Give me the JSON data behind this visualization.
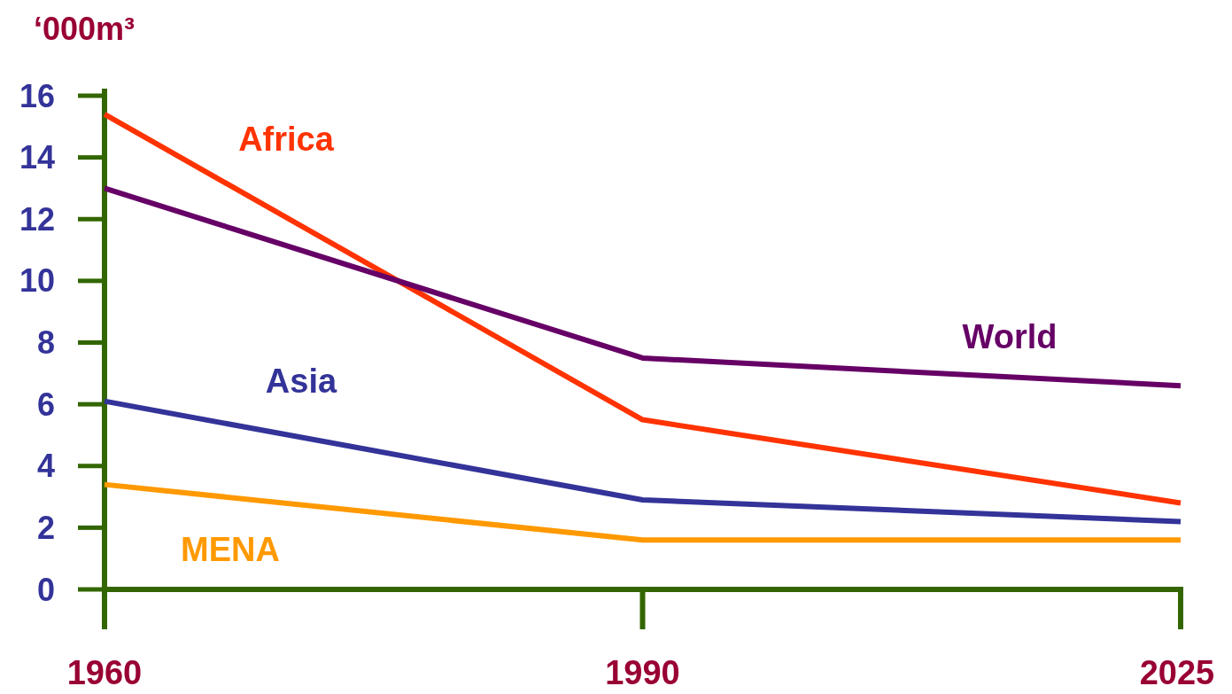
{
  "chart_data": {
    "type": "line",
    "ylabel": "‘000m³",
    "categories": [
      "1960",
      "1990",
      "2025"
    ],
    "ylim": [
      0,
      16
    ],
    "yticks": [
      0,
      2,
      4,
      6,
      8,
      10,
      12,
      14,
      16
    ],
    "grid": false,
    "marker": "none",
    "line_style": "solid",
    "series": [
      {
        "name": "Africa",
        "color": "#ff3300",
        "values": [
          15.4,
          5.5,
          2.8
        ]
      },
      {
        "name": "World",
        "color": "#660066",
        "values": [
          13.0,
          7.5,
          6.6
        ]
      },
      {
        "name": "Asia",
        "color": "#333399",
        "values": [
          6.1,
          2.9,
          2.2
        ]
      },
      {
        "name": "MENA",
        "color": "#ff9900",
        "values": [
          3.4,
          1.6,
          1.6
        ]
      }
    ]
  }
}
